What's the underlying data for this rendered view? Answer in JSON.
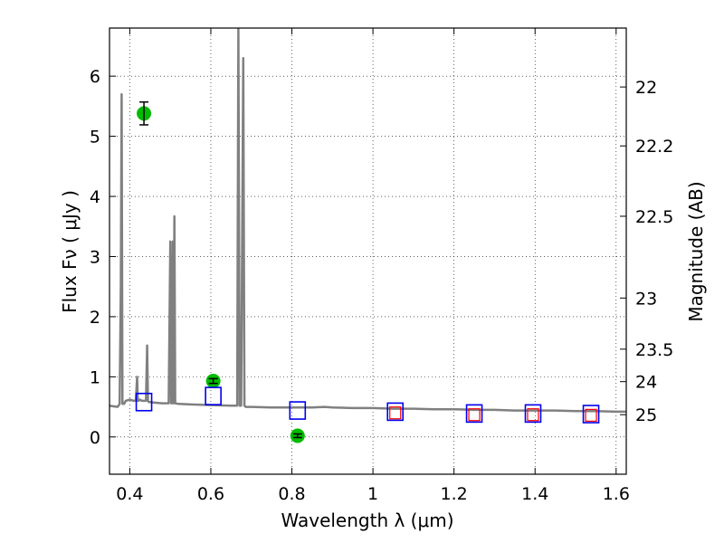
{
  "chart_data": {
    "type": "scatter",
    "xlabel": "Wavelength  λ (μm)",
    "ylabel": "Flux  Fν  ( μJy )",
    "y2label": "Magnitude (AB)",
    "xlim": [
      0.35,
      1.625
    ],
    "ylim": [
      -0.62,
      6.8
    ],
    "x_ticks": [
      0.4,
      0.6,
      0.8,
      1,
      1.2,
      1.4,
      1.6
    ],
    "x_tick_labels": [
      "0.4",
      "0.6",
      "0.8",
      "1",
      "1.2",
      "1.4",
      "1.6"
    ],
    "y_ticks": [
      0,
      1,
      2,
      3,
      4,
      5,
      6
    ],
    "y_tick_labels": [
      "0",
      "1",
      "2",
      "3",
      "4",
      "5",
      "6"
    ],
    "y2_ticks": [
      {
        "label": "22",
        "flux": 5.82
      },
      {
        "label": "22.2",
        "flux": 4.84
      },
      {
        "label": "22.5",
        "flux": 3.67
      },
      {
        "label": "23",
        "flux": 2.31
      },
      {
        "label": "23.5",
        "flux": 1.46
      },
      {
        "label": "24",
        "flux": 0.92
      },
      {
        "label": "25",
        "flux": 0.37
      }
    ],
    "grid": true,
    "grid_style": "dotted",
    "series": [
      {
        "kind": "model_spectrum",
        "color": "#808080",
        "x": [
          0.35,
          0.37,
          0.375,
          0.378,
          0.38,
          0.382,
          0.386,
          0.39,
          0.4,
          0.41,
          0.415,
          0.418,
          0.42,
          0.422,
          0.425,
          0.43,
          0.44,
          0.443,
          0.445,
          0.447,
          0.45,
          0.46,
          0.48,
          0.496,
          0.5,
          0.502,
          0.504,
          0.506,
          0.508,
          0.51,
          0.512,
          0.52,
          0.55,
          0.6,
          0.65,
          0.66,
          0.665,
          0.668,
          0.671,
          0.675,
          0.68,
          0.683,
          0.686,
          0.69,
          0.7,
          0.75,
          0.8,
          0.85,
          0.88,
          0.9,
          0.95,
          1.0,
          1.05,
          1.1,
          1.15,
          1.2,
          1.25,
          1.3,
          1.35,
          1.4,
          1.45,
          1.5,
          1.55,
          1.6,
          1.625
        ],
        "y": [
          0.52,
          0.5,
          0.55,
          2.5,
          5.7,
          0.55,
          0.55,
          0.6,
          0.62,
          0.6,
          0.6,
          1.0,
          0.6,
          0.6,
          0.62,
          0.6,
          0.6,
          1.52,
          0.6,
          0.58,
          0.58,
          0.57,
          0.56,
          0.56,
          3.25,
          0.56,
          0.56,
          3.25,
          0.56,
          3.67,
          0.56,
          0.55,
          0.54,
          0.53,
          0.52,
          0.52,
          0.52,
          6.8,
          0.52,
          0.52,
          6.3,
          0.52,
          0.5,
          0.5,
          0.5,
          0.49,
          0.49,
          0.49,
          0.5,
          0.49,
          0.48,
          0.48,
          0.47,
          0.47,
          0.46,
          0.46,
          0.45,
          0.45,
          0.44,
          0.44,
          0.44,
          0.43,
          0.43,
          0.42,
          0.42
        ]
      },
      {
        "kind": "observed_photometry",
        "color": "#00bb00",
        "points": [
          {
            "x": 0.435,
            "y": 5.38,
            "err": 0.19
          },
          {
            "x": 0.606,
            "y": 0.93,
            "err": 0.04
          },
          {
            "x": 0.814,
            "y": 0.02,
            "err": 0.03
          }
        ]
      },
      {
        "kind": "model_photometry_blue",
        "color": "#0000ee",
        "points": [
          {
            "x": 0.435,
            "y": 0.58
          },
          {
            "x": 0.606,
            "y": 0.68
          },
          {
            "x": 0.814,
            "y": 0.44
          },
          {
            "x": 1.055,
            "y": 0.42
          },
          {
            "x": 1.25,
            "y": 0.39
          },
          {
            "x": 1.395,
            "y": 0.39
          },
          {
            "x": 1.538,
            "y": 0.38
          }
        ]
      },
      {
        "kind": "model_photometry_red",
        "color": "#ff0000",
        "points": [
          {
            "x": 1.055,
            "y": 0.4
          },
          {
            "x": 1.25,
            "y": 0.37
          },
          {
            "x": 1.395,
            "y": 0.37
          },
          {
            "x": 1.538,
            "y": 0.36
          }
        ]
      }
    ]
  }
}
